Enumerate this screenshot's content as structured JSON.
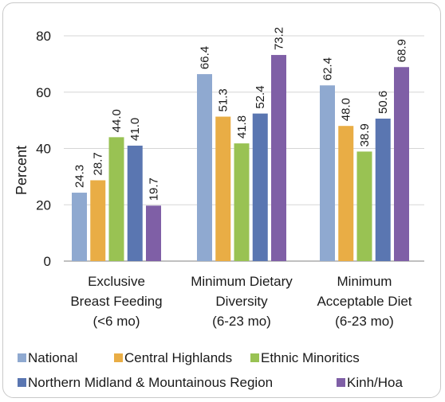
{
  "chart_data": {
    "type": "bar",
    "title": "",
    "ylabel": "Percent",
    "xlabel": "",
    "ylim": [
      0,
      80
    ],
    "yticks": [
      0,
      20,
      40,
      60,
      80
    ],
    "grid": true,
    "legend_position": "bottom",
    "categories": [
      [
        "Exclusive",
        "Breast Feeding",
        "(<6 mo)"
      ],
      [
        "Minimum Dietary",
        "Diversity",
        "(6-23 mo)"
      ],
      [
        "Minimum",
        "Acceptable Diet",
        "(6-23 mo)"
      ]
    ],
    "series": [
      {
        "name": "National",
        "color": "#8fa9d0",
        "values": [
          24.3,
          66.4,
          62.4
        ]
      },
      {
        "name": "Central Highlands",
        "color": "#e9ad45",
        "values": [
          28.7,
          51.3,
          48.0
        ]
      },
      {
        "name": "Ethnic Minoritics",
        "color": "#99c253",
        "values": [
          44.0,
          41.8,
          38.9
        ]
      },
      {
        "name": "Northern Midland & Mountainous Region",
        "color": "#5a76b1",
        "values": [
          41.0,
          52.4,
          50.6
        ]
      },
      {
        "name": "Kinh/Hoa",
        "color": "#7f5fa6",
        "values": [
          19.7,
          73.2,
          68.9
        ]
      }
    ]
  }
}
